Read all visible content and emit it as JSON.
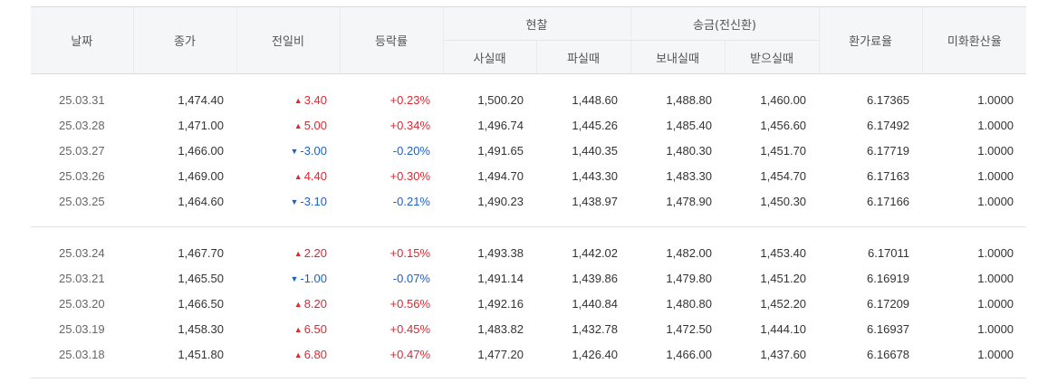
{
  "header": {
    "date": "날짜",
    "close": "종가",
    "change": "전일비",
    "rate": "등락률",
    "cash": "현찰",
    "cash_buy": "사실때",
    "cash_sell": "파실때",
    "remit": "송금(전신환)",
    "remit_send": "보내실때",
    "remit_receive": "받으실때",
    "fx_ratio": "환가료율",
    "usd_rate": "미화환산율"
  },
  "colors": {
    "up": "#e0262f",
    "down": "#1c61c7"
  },
  "groups": [
    [
      {
        "date": "25.03.31",
        "close": "1,474.40",
        "dir": "up",
        "change": "3.40",
        "rate": "+0.23%",
        "cash_buy": "1,500.20",
        "cash_sell": "1,448.60",
        "send": "1,488.80",
        "receive": "1,460.00",
        "fx": "6.17365",
        "usd": "1.0000"
      },
      {
        "date": "25.03.28",
        "close": "1,471.00",
        "dir": "up",
        "change": "5.00",
        "rate": "+0.34%",
        "cash_buy": "1,496.74",
        "cash_sell": "1,445.26",
        "send": "1,485.40",
        "receive": "1,456.60",
        "fx": "6.17492",
        "usd": "1.0000"
      },
      {
        "date": "25.03.27",
        "close": "1,466.00",
        "dir": "down",
        "change": "-3.00",
        "rate": "-0.20%",
        "cash_buy": "1,491.65",
        "cash_sell": "1,440.35",
        "send": "1,480.30",
        "receive": "1,451.70",
        "fx": "6.17719",
        "usd": "1.0000"
      },
      {
        "date": "25.03.26",
        "close": "1,469.00",
        "dir": "up",
        "change": "4.40",
        "rate": "+0.30%",
        "cash_buy": "1,494.70",
        "cash_sell": "1,443.30",
        "send": "1,483.30",
        "receive": "1,454.70",
        "fx": "6.17163",
        "usd": "1.0000"
      },
      {
        "date": "25.03.25",
        "close": "1,464.60",
        "dir": "down",
        "change": "-3.10",
        "rate": "-0.21%",
        "cash_buy": "1,490.23",
        "cash_sell": "1,438.97",
        "send": "1,478.90",
        "receive": "1,450.30",
        "fx": "6.17166",
        "usd": "1.0000"
      }
    ],
    [
      {
        "date": "25.03.24",
        "close": "1,467.70",
        "dir": "up",
        "change": "2.20",
        "rate": "+0.15%",
        "cash_buy": "1,493.38",
        "cash_sell": "1,442.02",
        "send": "1,482.00",
        "receive": "1,453.40",
        "fx": "6.17011",
        "usd": "1.0000"
      },
      {
        "date": "25.03.21",
        "close": "1,465.50",
        "dir": "down",
        "change": "-1.00",
        "rate": "-0.07%",
        "cash_buy": "1,491.14",
        "cash_sell": "1,439.86",
        "send": "1,479.80",
        "receive": "1,451.20",
        "fx": "6.16919",
        "usd": "1.0000"
      },
      {
        "date": "25.03.20",
        "close": "1,466.50",
        "dir": "up",
        "change": "8.20",
        "rate": "+0.56%",
        "cash_buy": "1,492.16",
        "cash_sell": "1,440.84",
        "send": "1,480.80",
        "receive": "1,452.20",
        "fx": "6.17209",
        "usd": "1.0000"
      },
      {
        "date": "25.03.19",
        "close": "1,458.30",
        "dir": "up",
        "change": "6.50",
        "rate": "+0.45%",
        "cash_buy": "1,483.82",
        "cash_sell": "1,432.78",
        "send": "1,472.50",
        "receive": "1,444.10",
        "fx": "6.16937",
        "usd": "1.0000"
      },
      {
        "date": "25.03.18",
        "close": "1,451.80",
        "dir": "up",
        "change": "6.80",
        "rate": "+0.47%",
        "cash_buy": "1,477.20",
        "cash_sell": "1,426.40",
        "send": "1,466.00",
        "receive": "1,437.60",
        "fx": "6.16678",
        "usd": "1.0000"
      }
    ]
  ]
}
